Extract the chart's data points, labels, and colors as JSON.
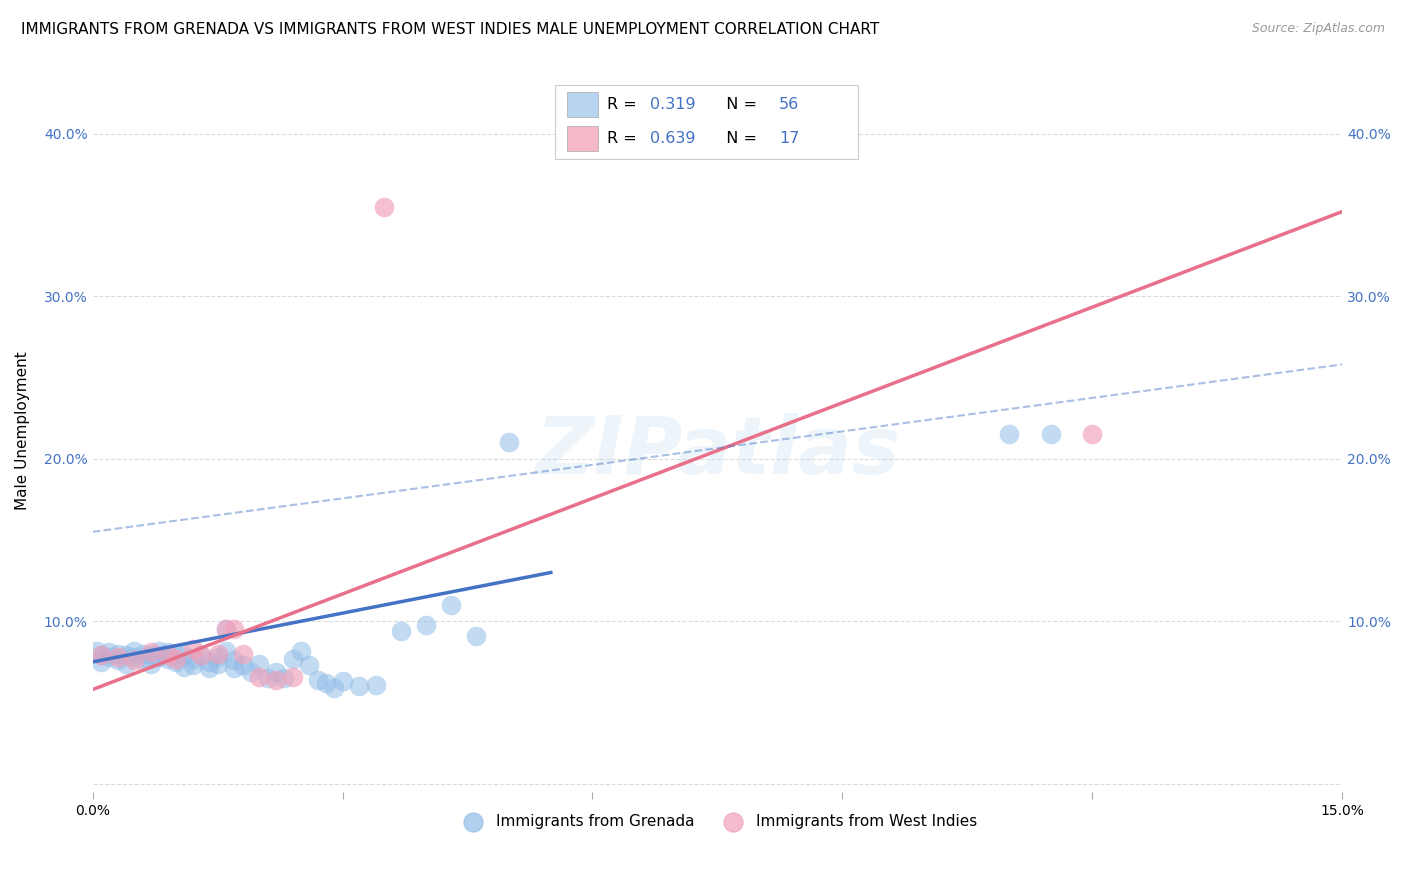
{
  "title": "IMMIGRANTS FROM GRENADA VS IMMIGRANTS FROM WEST INDIES MALE UNEMPLOYMENT CORRELATION CHART",
  "source": "Source: ZipAtlas.com",
  "ylabel": "Male Unemployment",
  "xlim": [
    0,
    0.15
  ],
  "ylim": [
    -0.005,
    0.44
  ],
  "yticks": [
    0.0,
    0.1,
    0.2,
    0.3,
    0.4
  ],
  "xtick_vals": [
    0.0,
    0.03,
    0.06,
    0.09,
    0.12,
    0.15
  ],
  "xtick_labels": [
    "0.0%",
    "",
    "",
    "",
    "",
    "15.0%"
  ],
  "watermark": "ZIPatlas",
  "blue_color": "#90bce8",
  "pink_color": "#f0a0b8",
  "line_blue": "#4472c4",
  "line_pink": "#e8708a",
  "legend_box_blue": "#b8d4f0",
  "legend_box_pink": "#f4b8c8",
  "text_blue": "#4472c4",
  "grid_color": "#cccccc",
  "background_color": "#ffffff",
  "blue_scatter": [
    [
      0.0005,
      0.082
    ],
    [
      0.001,
      0.079
    ],
    [
      0.001,
      0.075
    ],
    [
      0.002,
      0.081
    ],
    [
      0.002,
      0.078
    ],
    [
      0.003,
      0.076
    ],
    [
      0.003,
      0.08
    ],
    [
      0.004,
      0.079
    ],
    [
      0.004,
      0.074
    ],
    [
      0.005,
      0.082
    ],
    [
      0.005,
      0.078
    ],
    [
      0.006,
      0.08
    ],
    [
      0.006,
      0.076
    ],
    [
      0.007,
      0.079
    ],
    [
      0.007,
      0.074
    ],
    [
      0.008,
      0.082
    ],
    [
      0.008,
      0.078
    ],
    [
      0.009,
      0.081
    ],
    [
      0.009,
      0.077
    ],
    [
      0.01,
      0.08
    ],
    [
      0.01,
      0.075
    ],
    [
      0.011,
      0.079
    ],
    [
      0.011,
      0.072
    ],
    [
      0.012,
      0.077
    ],
    [
      0.012,
      0.073
    ],
    [
      0.013,
      0.079
    ],
    [
      0.014,
      0.075
    ],
    [
      0.014,
      0.071
    ],
    [
      0.015,
      0.078
    ],
    [
      0.015,
      0.074
    ],
    [
      0.016,
      0.082
    ],
    [
      0.016,
      0.095
    ],
    [
      0.017,
      0.076
    ],
    [
      0.017,
      0.071
    ],
    [
      0.018,
      0.073
    ],
    [
      0.019,
      0.069
    ],
    [
      0.02,
      0.074
    ],
    [
      0.021,
      0.065
    ],
    [
      0.022,
      0.069
    ],
    [
      0.023,
      0.065
    ],
    [
      0.024,
      0.077
    ],
    [
      0.025,
      0.082
    ],
    [
      0.026,
      0.073
    ],
    [
      0.027,
      0.064
    ],
    [
      0.028,
      0.062
    ],
    [
      0.029,
      0.059
    ],
    [
      0.03,
      0.063
    ],
    [
      0.032,
      0.06
    ],
    [
      0.034,
      0.061
    ],
    [
      0.037,
      0.094
    ],
    [
      0.04,
      0.098
    ],
    [
      0.043,
      0.11
    ],
    [
      0.046,
      0.091
    ],
    [
      0.05,
      0.21
    ],
    [
      0.11,
      0.215
    ],
    [
      0.115,
      0.215
    ]
  ],
  "pink_scatter": [
    [
      0.001,
      0.079
    ],
    [
      0.003,
      0.078
    ],
    [
      0.005,
      0.076
    ],
    [
      0.007,
      0.081
    ],
    [
      0.009,
      0.079
    ],
    [
      0.01,
      0.077
    ],
    [
      0.012,
      0.083
    ],
    [
      0.013,
      0.079
    ],
    [
      0.015,
      0.08
    ],
    [
      0.016,
      0.095
    ],
    [
      0.017,
      0.095
    ],
    [
      0.018,
      0.08
    ],
    [
      0.02,
      0.066
    ],
    [
      0.022,
      0.064
    ],
    [
      0.024,
      0.066
    ],
    [
      0.035,
      0.355
    ],
    [
      0.12,
      0.215
    ]
  ],
  "blue_line_x": [
    0.0,
    0.055
  ],
  "blue_line_y": [
    0.075,
    0.13
  ],
  "pink_line_x": [
    0.0,
    0.15
  ],
  "pink_line_y": [
    0.058,
    0.352
  ],
  "dash_line_x": [
    0.0,
    0.15
  ],
  "dash_line_y": [
    0.155,
    0.258
  ],
  "title_fontsize": 11,
  "axis_label_fontsize": 11,
  "tick_fontsize": 10,
  "legend_fontsize": 11.5
}
